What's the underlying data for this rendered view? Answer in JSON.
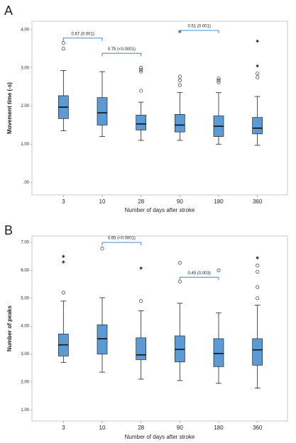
{
  "chart_data": [
    {
      "type": "box",
      "label": "A",
      "ylabel": "Movement time (-s)",
      "xlabel": "Number of days after stroke",
      "color": "#5b9bd5",
      "categories": [
        "3",
        "10",
        "28",
        "90",
        "180",
        "360"
      ],
      "ylim": [
        -0.33,
        4.22
      ],
      "yticks": [
        {
          "value": 0,
          "label": ".00"
        },
        {
          "value": 1,
          "label": "1.00"
        },
        {
          "value": 2,
          "label": "2.00"
        },
        {
          "value": 3,
          "label": "3.00"
        },
        {
          "value": 4,
          "label": "4.00"
        }
      ],
      "boxes": [
        {
          "whislo": 1.35,
          "q1": 1.67,
          "med": 1.97,
          "q3": 2.27,
          "whishi": 2.93,
          "outliers": [
            3.5,
            3.65
          ],
          "extremes": []
        },
        {
          "whislo": 1.2,
          "q1": 1.5,
          "med": 1.82,
          "q3": 2.22,
          "whishi": 2.9,
          "outliers": [],
          "extremes": []
        },
        {
          "whislo": 1.1,
          "q1": 1.37,
          "med": 1.53,
          "q3": 1.76,
          "whishi": 2.1,
          "outliers": [
            2.4,
            2.9,
            2.95,
            3.0
          ],
          "extremes": []
        },
        {
          "whislo": 1.1,
          "q1": 1.32,
          "med": 1.5,
          "q3": 1.78,
          "whishi": 2.35,
          "outliers": [
            2.55,
            2.67,
            2.77
          ],
          "extremes": [
            3.95
          ]
        },
        {
          "whislo": 1.0,
          "q1": 1.2,
          "med": 1.47,
          "q3": 1.74,
          "whishi": 2.35,
          "outliers": [
            2.62,
            2.67,
            2.72
          ],
          "extremes": []
        },
        {
          "whislo": 0.97,
          "q1": 1.27,
          "med": 1.42,
          "q3": 1.7,
          "whishi": 2.25,
          "outliers": [
            2.75,
            2.85
          ],
          "extremes": [
            3.05,
            3.7
          ]
        }
      ],
      "annotations": [
        {
          "text": "0.67 (0.001)",
          "between": [
            "3",
            "10"
          ],
          "y": 3.78
        },
        {
          "text": "0.75 (<0.0001)",
          "between": [
            "10",
            "28"
          ],
          "y": 3.38
        },
        {
          "text": "0.51 (0.001)",
          "between": [
            "90",
            "180"
          ],
          "y": 3.98
        }
      ]
    },
    {
      "type": "box",
      "label": "B",
      "ylabel": "Number of peaks",
      "xlabel": "Number of days after stroke",
      "color": "#5b9bd5",
      "categories": [
        "3",
        "10",
        "28",
        "90",
        "180",
        "360"
      ],
      "ylim": [
        0.6,
        7.23
      ],
      "yticks": [
        {
          "value": 1,
          "label": "1.00"
        },
        {
          "value": 2,
          "label": "2.00"
        },
        {
          "value": 3,
          "label": "3.00"
        },
        {
          "value": 4,
          "label": "4.00"
        },
        {
          "value": 5,
          "label": "5.00"
        },
        {
          "value": 6,
          "label": "6.00"
        },
        {
          "value": 7,
          "label": "7.00"
        }
      ],
      "boxes": [
        {
          "whislo": 2.7,
          "q1": 2.93,
          "med": 3.33,
          "q3": 3.72,
          "whishi": 4.9,
          "outliers": [
            5.2
          ],
          "extremes": [
            6.3,
            6.5
          ]
        },
        {
          "whislo": 2.35,
          "q1": 3.0,
          "med": 3.55,
          "q3": 4.05,
          "whishi": 5.02,
          "outliers": [
            6.78
          ],
          "extremes": []
        },
        {
          "whislo": 2.1,
          "q1": 2.8,
          "med": 2.97,
          "q3": 3.58,
          "whishi": 4.55,
          "outliers": [
            4.9
          ],
          "extremes": [
            6.08
          ]
        },
        {
          "whislo": 2.05,
          "q1": 2.72,
          "med": 3.17,
          "q3": 3.65,
          "whishi": 4.82,
          "outliers": [
            5.6,
            6.27
          ],
          "extremes": []
        },
        {
          "whislo": 1.95,
          "q1": 2.55,
          "med": 3.02,
          "q3": 3.55,
          "whishi": 4.48,
          "outliers": [
            6.0
          ],
          "extremes": []
        },
        {
          "whislo": 1.78,
          "q1": 2.6,
          "med": 3.15,
          "q3": 3.55,
          "whishi": 4.75,
          "outliers": [
            5.0,
            5.4,
            5.95,
            6.17
          ],
          "extremes": [
            6.45
          ]
        }
      ],
      "annotations": [
        {
          "text": "0.65 (<0.0001)",
          "between": [
            "10",
            "28"
          ],
          "y": 7.0
        },
        {
          "text": "0.45 (0.003)",
          "between": [
            "90",
            "180"
          ],
          "y": 5.75
        }
      ]
    }
  ]
}
